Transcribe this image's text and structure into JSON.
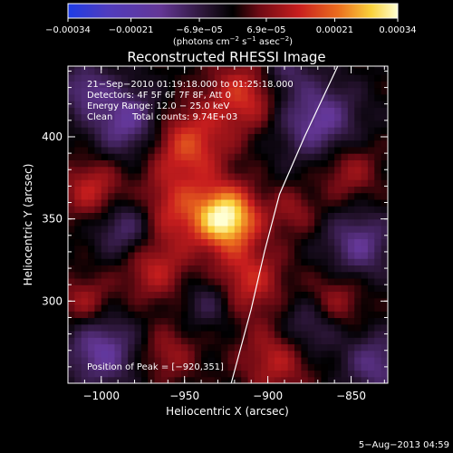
{
  "chart_data": {
    "type": "heatmap",
    "title": "Reconstructed RHESSI Image",
    "xlabel": "Heliocentric X (arcsec)",
    "ylabel": "Heliocentric Y (arcsec)",
    "xlim": [
      -1020,
      -828
    ],
    "ylim": [
      250,
      443
    ],
    "x_ticks": [
      -1000,
      -950,
      -900,
      -850
    ],
    "y_ticks": [
      300,
      350,
      400
    ],
    "x_tick_labels": [
      "−1000",
      "−950",
      "−900",
      "−850"
    ],
    "y_tick_labels": [
      "300",
      "350",
      "400"
    ],
    "colorbar": {
      "range": [
        -0.00034,
        0.00034
      ],
      "tick_values": [
        -0.00034,
        -0.00021,
        -6.9e-05,
        6.9e-05,
        0.00021,
        0.00034
      ],
      "tick_labels": [
        "−0.00034",
        "−0.00021",
        "−6.9e−05",
        "6.9e−05",
        "0.00021",
        "0.00034"
      ],
      "unit_main": "(photons cm",
      "unit_exp1": "−2",
      "unit_mid": " s",
      "unit_exp2": "−1",
      "unit_tail": " asec",
      "unit_exp3": "−2",
      "unit_close": ")"
    },
    "annotations": {
      "time_range": "21−Sep−2010 01:19:18.000 to 01:25:18.000",
      "detectors": "Detectors: 4F 5F 6F 7F 8F, Att 0",
      "energy": "Energy Range: 12.0 − 25.0 keV",
      "method": "Clean",
      "counts": "Total counts: 9.74E+03",
      "peak": "Position of Peak = [−920,351]"
    },
    "sources": [
      {
        "x": -925,
        "y": 351,
        "value": 0.00034,
        "sigma": 13
      },
      {
        "x": -948,
        "y": 395,
        "value": 0.00017,
        "sigma": 16
      },
      {
        "x": -915,
        "y": 425,
        "value": 0.00015,
        "sigma": 15
      },
      {
        "x": -957,
        "y": 356,
        "value": 0.00013,
        "sigma": 15
      },
      {
        "x": -912,
        "y": 313,
        "value": 0.00014,
        "sigma": 15
      },
      {
        "x": -968,
        "y": 320,
        "value": 0.00012,
        "sigma": 14
      },
      {
        "x": -1005,
        "y": 368,
        "value": 0.00013,
        "sigma": 13
      },
      {
        "x": -1010,
        "y": 300,
        "value": 0.0001,
        "sigma": 11
      },
      {
        "x": -895,
        "y": 265,
        "value": 0.00012,
        "sigma": 15
      },
      {
        "x": -960,
        "y": 268,
        "value": 9e-05,
        "sigma": 12
      },
      {
        "x": -852,
        "y": 380,
        "value": 0.0001,
        "sigma": 13
      },
      {
        "x": -860,
        "y": 300,
        "value": 0.0001,
        "sigma": 12
      },
      {
        "x": -885,
        "y": 355,
        "value": 8e-05,
        "sigma": 10
      },
      {
        "x": -985,
        "y": 410,
        "value": -0.00016,
        "sigma": 15
      },
      {
        "x": -1010,
        "y": 430,
        "value": -0.00012,
        "sigma": 11
      },
      {
        "x": -870,
        "y": 410,
        "value": -0.00016,
        "sigma": 17
      },
      {
        "x": -845,
        "y": 335,
        "value": -0.00014,
        "sigma": 14
      },
      {
        "x": -985,
        "y": 345,
        "value": -0.00013,
        "sigma": 13
      },
      {
        "x": -1000,
        "y": 270,
        "value": -0.00016,
        "sigma": 15
      },
      {
        "x": -875,
        "y": 285,
        "value": -0.00011,
        "sigma": 13
      },
      {
        "x": -935,
        "y": 300,
        "value": -9e-05,
        "sigma": 11
      },
      {
        "x": -835,
        "y": 262,
        "value": -0.00013,
        "sigma": 13
      },
      {
        "x": -890,
        "y": 440,
        "value": -9e-05,
        "sigma": 10
      }
    ],
    "limb": [
      {
        "x": -922,
        "y": 250
      },
      {
        "x": -910,
        "y": 295
      },
      {
        "x": -902,
        "y": 330
      },
      {
        "x": -893,
        "y": 365
      },
      {
        "x": -878,
        "y": 400
      },
      {
        "x": -858,
        "y": 443
      }
    ],
    "grid": false,
    "colormap": "rhessi-purple-red-yellow",
    "colors": {
      "background": "#000000",
      "axis": "#ffffff",
      "limb": "#ffffff"
    }
  },
  "footer": {
    "date": "5−Aug−2013 04:59"
  }
}
